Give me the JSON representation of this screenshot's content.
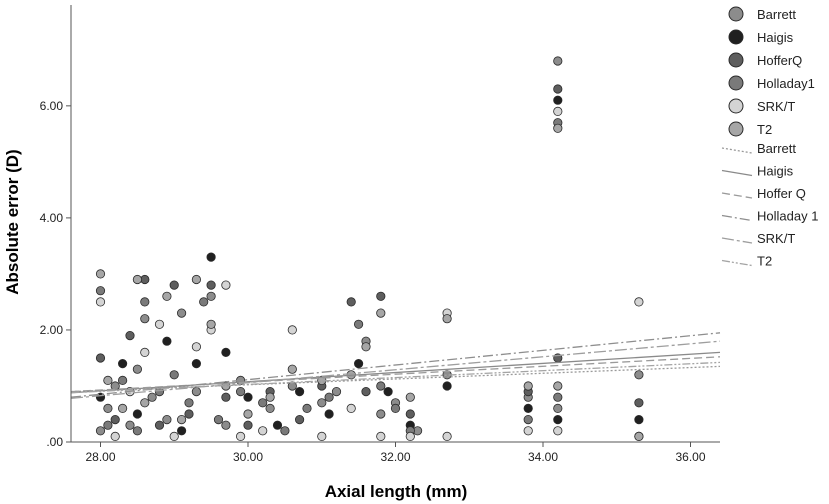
{
  "chart_data": {
    "type": "scatter",
    "title": "",
    "xlabel": "Axial length (mm)",
    "ylabel": "Absolute error (D)",
    "xlim": [
      27.6,
      36.4
    ],
    "ylim": [
      0,
      7.8
    ],
    "x_ticks": [
      28,
      30,
      32,
      34,
      36
    ],
    "x_tick_labels": [
      "28.00",
      "30.00",
      "32.00",
      "34.00",
      "36.00"
    ],
    "y_ticks": [
      0,
      2,
      4,
      6
    ],
    "y_tick_labels": [
      ".00",
      "2.00",
      "4.00",
      "6.00"
    ],
    "grid": false,
    "legend_position": "top-right",
    "series": [
      {
        "name": "Barrett",
        "color": "#8c8c8c",
        "points": [
          [
            28.0,
            0.2
          ],
          [
            28.1,
            0.6
          ],
          [
            28.2,
            1.0
          ],
          [
            28.4,
            0.3
          ],
          [
            28.5,
            1.3
          ],
          [
            28.6,
            2.2
          ],
          [
            28.7,
            0.8
          ],
          [
            28.9,
            0.4
          ],
          [
            29.1,
            2.3
          ],
          [
            29.3,
            0.9
          ],
          [
            29.5,
            2.6
          ],
          [
            29.7,
            0.3
          ],
          [
            29.9,
            1.1
          ],
          [
            30.3,
            0.6
          ],
          [
            30.6,
            1.0
          ],
          [
            31.0,
            0.7
          ],
          [
            31.2,
            0.9
          ],
          [
            31.6,
            1.8
          ],
          [
            31.8,
            0.5
          ],
          [
            32.0,
            0.7
          ],
          [
            32.3,
            0.2
          ],
          [
            32.7,
            1.2
          ],
          [
            33.8,
            0.8
          ],
          [
            34.2,
            6.8
          ],
          [
            34.2,
            0.6
          ],
          [
            35.3,
            1.2
          ]
        ]
      },
      {
        "name": "Haigis",
        "color": "#202020",
        "points": [
          [
            28.0,
            0.8
          ],
          [
            28.3,
            1.4
          ],
          [
            28.5,
            0.5
          ],
          [
            28.9,
            1.8
          ],
          [
            29.1,
            0.2
          ],
          [
            29.3,
            1.4
          ],
          [
            29.5,
            3.3
          ],
          [
            29.7,
            1.6
          ],
          [
            30.0,
            0.8
          ],
          [
            30.4,
            0.3
          ],
          [
            30.7,
            0.9
          ],
          [
            31.1,
            0.5
          ],
          [
            31.5,
            1.4
          ],
          [
            31.9,
            0.9
          ],
          [
            32.2,
            0.3
          ],
          [
            32.7,
            1.0
          ],
          [
            33.8,
            0.6
          ],
          [
            34.2,
            6.1
          ],
          [
            34.2,
            0.4
          ],
          [
            35.3,
            0.4
          ]
        ]
      },
      {
        "name": "HofferQ",
        "color": "#5e5e5e",
        "points": [
          [
            28.0,
            1.5
          ],
          [
            28.2,
            0.4
          ],
          [
            28.4,
            1.9
          ],
          [
            28.6,
            2.9
          ],
          [
            28.8,
            0.3
          ],
          [
            29.0,
            2.8
          ],
          [
            29.2,
            0.5
          ],
          [
            29.5,
            2.8
          ],
          [
            29.7,
            0.8
          ],
          [
            30.0,
            0.3
          ],
          [
            30.3,
            0.9
          ],
          [
            30.7,
            0.4
          ],
          [
            31.0,
            1.0
          ],
          [
            31.4,
            2.5
          ],
          [
            31.6,
            0.9
          ],
          [
            31.8,
            2.6
          ],
          [
            32.2,
            0.5
          ],
          [
            33.8,
            0.9
          ],
          [
            34.2,
            6.3
          ],
          [
            34.2,
            1.5
          ],
          [
            35.3,
            0.7
          ]
        ]
      },
      {
        "name": "Holladay1",
        "color": "#7a7a7a",
        "points": [
          [
            28.0,
            2.7
          ],
          [
            28.1,
            0.3
          ],
          [
            28.3,
            1.1
          ],
          [
            28.5,
            0.2
          ],
          [
            28.6,
            2.5
          ],
          [
            28.8,
            0.9
          ],
          [
            29.0,
            1.2
          ],
          [
            29.2,
            0.7
          ],
          [
            29.4,
            2.5
          ],
          [
            29.6,
            0.4
          ],
          [
            29.9,
            0.9
          ],
          [
            30.2,
            0.7
          ],
          [
            30.5,
            0.2
          ],
          [
            30.8,
            0.6
          ],
          [
            31.1,
            0.8
          ],
          [
            31.5,
            2.1
          ],
          [
            31.8,
            1.0
          ],
          [
            32.0,
            0.6
          ],
          [
            32.2,
            0.2
          ],
          [
            33.8,
            0.4
          ],
          [
            34.2,
            5.7
          ],
          [
            34.2,
            0.8
          ],
          [
            35.3,
            0.1
          ]
        ]
      },
      {
        "name": "SRK/T",
        "color": "#d4d4d4",
        "points": [
          [
            28.0,
            2.5
          ],
          [
            28.2,
            0.1
          ],
          [
            28.4,
            0.9
          ],
          [
            28.6,
            1.6
          ],
          [
            28.8,
            2.1
          ],
          [
            29.0,
            0.1
          ],
          [
            29.3,
            1.7
          ],
          [
            29.5,
            2.0
          ],
          [
            29.7,
            2.8
          ],
          [
            29.9,
            0.1
          ],
          [
            30.2,
            0.2
          ],
          [
            30.6,
            2.0
          ],
          [
            31.0,
            0.1
          ],
          [
            31.4,
            0.6
          ],
          [
            31.8,
            0.1
          ],
          [
            32.2,
            0.1
          ],
          [
            32.7,
            2.3
          ],
          [
            32.7,
            0.1
          ],
          [
            33.8,
            0.2
          ],
          [
            34.2,
            5.9
          ],
          [
            34.2,
            0.2
          ],
          [
            35.3,
            2.5
          ]
        ]
      },
      {
        "name": "T2",
        "color": "#a6a6a6",
        "points": [
          [
            28.0,
            3.0
          ],
          [
            28.1,
            1.1
          ],
          [
            28.3,
            0.6
          ],
          [
            28.5,
            2.9
          ],
          [
            28.6,
            0.7
          ],
          [
            28.9,
            2.6
          ],
          [
            29.1,
            0.4
          ],
          [
            29.3,
            2.9
          ],
          [
            29.5,
            2.1
          ],
          [
            29.7,
            1.0
          ],
          [
            30.0,
            0.5
          ],
          [
            30.3,
            0.8
          ],
          [
            30.6,
            1.3
          ],
          [
            31.0,
            1.1
          ],
          [
            31.4,
            1.2
          ],
          [
            31.6,
            1.7
          ],
          [
            31.8,
            2.3
          ],
          [
            32.2,
            0.8
          ],
          [
            32.7,
            2.2
          ],
          [
            33.8,
            1.0
          ],
          [
            34.2,
            5.6
          ],
          [
            34.2,
            1.0
          ],
          [
            35.3,
            0.1
          ]
        ]
      }
    ],
    "fit_lines": [
      {
        "name": "Barrett",
        "color": "#9a9a9a",
        "dash": "2,2",
        "x": [
          27.6,
          36.4
        ],
        "y": [
          0.9,
          1.35
        ]
      },
      {
        "name": "Haigis",
        "color": "#8a8a8a",
        "dash": "",
        "x": [
          27.6,
          36.4
        ],
        "y": [
          0.88,
          1.6
        ]
      },
      {
        "name": "Hoffer Q",
        "color": "#9a9a9a",
        "dash": "8,4",
        "x": [
          27.6,
          36.4
        ],
        "y": [
          0.9,
          1.52
        ]
      },
      {
        "name": "Holladay 1",
        "color": "#8e8e8e",
        "dash": "10,3,2,3",
        "x": [
          27.6,
          36.4
        ],
        "y": [
          0.8,
          1.95
        ]
      },
      {
        "name": "SRK/T",
        "color": "#9e9e9e",
        "dash": "12,3,3,3",
        "x": [
          27.6,
          36.4
        ],
        "y": [
          0.78,
          1.8
        ]
      },
      {
        "name": "T2",
        "color": "#a4a4a4",
        "dash": "8,2,2,2,2,2",
        "x": [
          27.6,
          36.4
        ],
        "y": [
          0.88,
          1.42
        ]
      }
    ]
  }
}
